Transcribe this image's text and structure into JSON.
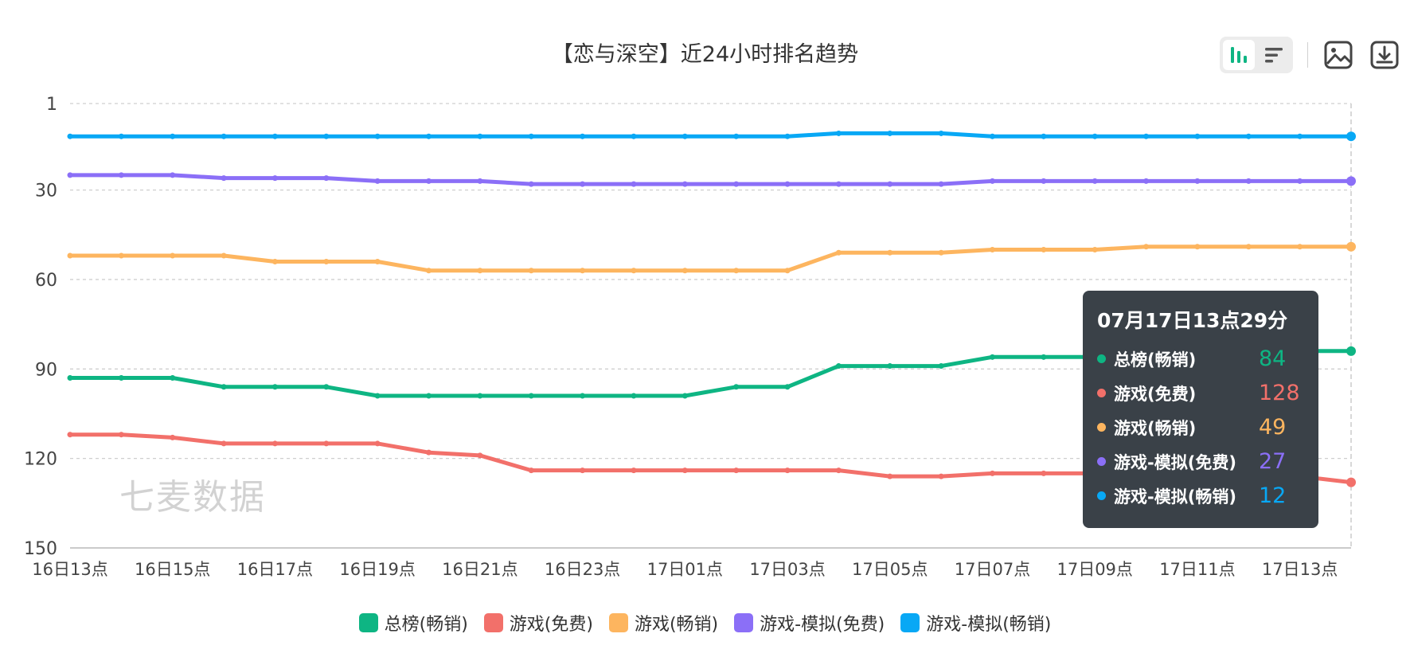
{
  "chart_data": {
    "type": "line",
    "title": "【恋与深空】近24小时排名趋势",
    "x": [
      "16日13点",
      "16日14点",
      "16日15点",
      "16日16点",
      "16日17点",
      "16日18点",
      "16日19点",
      "16日20点",
      "16日21点",
      "16日22点",
      "16日23点",
      "17日00点",
      "17日01点",
      "17日02点",
      "17日03点",
      "17日04点",
      "17日05点",
      "17日06点",
      "17日07点",
      "17日08点",
      "17日09点",
      "17日10点",
      "17日11点",
      "17日12点",
      "17日13点",
      "17日14点"
    ],
    "x_tick_labels": [
      "16日13点",
      "16日15点",
      "16日17点",
      "16日19点",
      "16日21点",
      "16日23点",
      "17日01点",
      "17日03点",
      "17日05点",
      "17日07点",
      "17日09点",
      "17日11点",
      "17日13点"
    ],
    "y_axis": {
      "inverse": true,
      "ticks": [
        "1",
        "30",
        "60",
        "90",
        "120",
        "150"
      ],
      "ylim": [
        1,
        150
      ]
    },
    "series": [
      {
        "name": "总榜(畅销)",
        "color": "#0eb583",
        "values": [
          93,
          93,
          93,
          96,
          96,
          96,
          99,
          99,
          99,
          99,
          99,
          99,
          99,
          96,
          96,
          89,
          89,
          89,
          86,
          86,
          86,
          86,
          84,
          84,
          84,
          84
        ]
      },
      {
        "name": "游戏(免费)",
        "color": "#f2706a",
        "values": [
          112,
          112,
          113,
          115,
          115,
          115,
          115,
          118,
          119,
          124,
          124,
          124,
          124,
          124,
          124,
          124,
          126,
          126,
          125,
          125,
          125,
          126,
          126,
          126,
          126,
          128
        ]
      },
      {
        "name": "游戏(畅销)",
        "color": "#fdb55f",
        "values": [
          52,
          52,
          52,
          52,
          54,
          54,
          54,
          57,
          57,
          57,
          57,
          57,
          57,
          57,
          57,
          51,
          51,
          51,
          50,
          50,
          50,
          49,
          49,
          49,
          49,
          49
        ]
      },
      {
        "name": "游戏-模拟(免费)",
        "color": "#8b6ff7",
        "values": [
          25,
          25,
          25,
          26,
          26,
          26,
          27,
          27,
          27,
          28,
          28,
          28,
          28,
          28,
          28,
          28,
          28,
          28,
          27,
          27,
          27,
          27,
          27,
          27,
          27,
          27
        ]
      },
      {
        "name": "游戏-模拟(畅销)",
        "color": "#08a8f5",
        "values": [
          12,
          12,
          12,
          12,
          12,
          12,
          12,
          12,
          12,
          12,
          12,
          12,
          12,
          12,
          12,
          11,
          11,
          11,
          12,
          12,
          12,
          12,
          12,
          12,
          12,
          12
        ]
      }
    ],
    "grid": true,
    "legend_position": "bottom-center"
  },
  "watermark": "七麦数据",
  "tooltip": {
    "title": "07月17日13点29分",
    "rows": [
      {
        "name": "总榜(畅销)",
        "value": "84",
        "color": "#0eb583"
      },
      {
        "name": "游戏(免费)",
        "value": "128",
        "color": "#f2706a"
      },
      {
        "name": "游戏(畅销)",
        "value": "49",
        "color": "#fdb55f"
      },
      {
        "name": "游戏-模拟(免费)",
        "value": "27",
        "color": "#8b6ff7"
      },
      {
        "name": "游戏-模拟(畅销)",
        "value": "12",
        "color": "#08a8f5"
      }
    ]
  },
  "toolbar": {
    "icons": [
      "line-chart-icon",
      "bar-list-icon",
      "image-icon",
      "download-icon"
    ],
    "accent": "#0eb583"
  }
}
